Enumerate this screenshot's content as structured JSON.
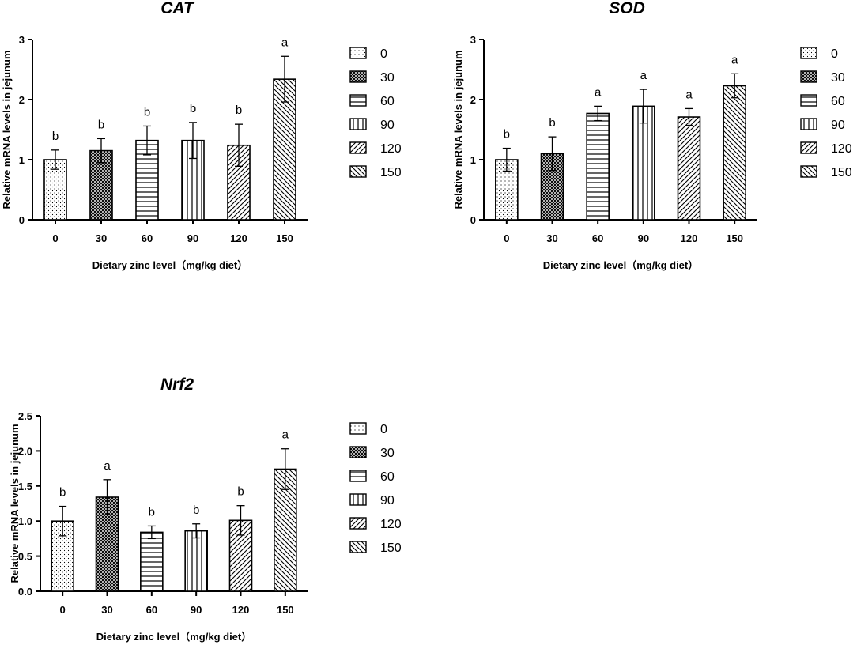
{
  "chart_data": [
    {
      "type": "bar",
      "title": "CAT",
      "xlabel": "Dietary zinc level（mg/kg diet）",
      "ylabel": "Relative mRNA levels in jejunum",
      "categories": [
        "0",
        "30",
        "60",
        "90",
        "120",
        "150"
      ],
      "values": [
        1.0,
        1.15,
        1.32,
        1.32,
        1.24,
        2.34
      ],
      "errors": [
        0.16,
        0.2,
        0.24,
        0.3,
        0.35,
        0.38
      ],
      "significance": [
        "b",
        "b",
        "b",
        "b",
        "b",
        "a"
      ],
      "ylim": [
        0,
        3
      ],
      "yticks": [
        "0",
        "1",
        "2",
        "3"
      ],
      "legend": [
        "0",
        "30",
        "60",
        "90",
        "120",
        "150"
      ]
    },
    {
      "type": "bar",
      "title": "SOD",
      "xlabel": "Dietary zinc level（mg/kg diet）",
      "ylabel": "Relative mRNA levels in jejunum",
      "categories": [
        "0",
        "30",
        "60",
        "90",
        "120",
        "150"
      ],
      "values": [
        1.0,
        1.1,
        1.77,
        1.89,
        1.71,
        2.23
      ],
      "errors": [
        0.19,
        0.28,
        0.12,
        0.28,
        0.14,
        0.2
      ],
      "significance": [
        "b",
        "b",
        "a",
        "a",
        "a",
        "a"
      ],
      "ylim": [
        0,
        3
      ],
      "yticks": [
        "0",
        "1",
        "2",
        "3"
      ],
      "legend": [
        "0",
        "30",
        "60",
        "90",
        "120",
        "150"
      ]
    },
    {
      "type": "bar",
      "title": "Nrf2",
      "xlabel": "Dietary zinc level（mg/kg diet）",
      "ylabel": "Relative mRNA levels in jejunum",
      "categories": [
        "0",
        "30",
        "60",
        "90",
        "120",
        "150"
      ],
      "values": [
        1.0,
        1.34,
        0.84,
        0.86,
        1.01,
        1.74
      ],
      "errors": [
        0.21,
        0.25,
        0.09,
        0.1,
        0.21,
        0.29
      ],
      "significance": [
        "b",
        "a",
        "b",
        "b",
        "b",
        "a"
      ],
      "ylim": [
        0,
        2.5
      ],
      "yticks": [
        "0.0",
        "0.5",
        "1.0",
        "1.5",
        "2.0",
        "2.5"
      ],
      "legend": [
        "0",
        "30",
        "60",
        "90",
        "120",
        "150"
      ]
    }
  ],
  "patterns": [
    "dots",
    "crosshatch",
    "hlines",
    "vlines",
    "diag-up",
    "diag-down"
  ],
  "colors": {
    "ink": "#000000",
    "background": "#ffffff"
  }
}
